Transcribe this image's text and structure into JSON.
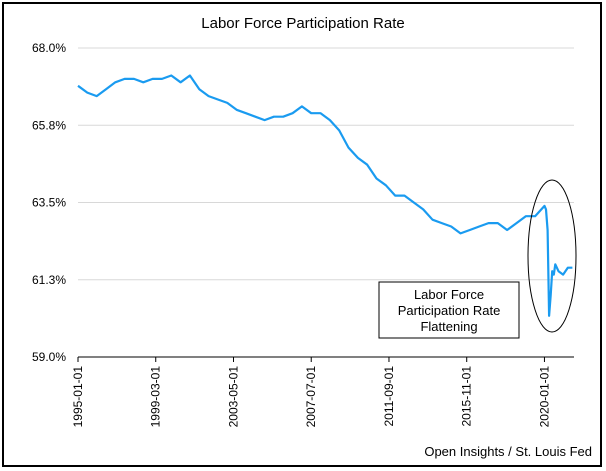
{
  "chart_data": {
    "type": "line",
    "title": "Labor Force Participation Rate",
    "xlabel": "",
    "ylabel": "",
    "ylim": [
      59.0,
      68.0
    ],
    "y_ticks": [
      "68.0%",
      "65.8%",
      "63.5%",
      "61.3%",
      "59.0%"
    ],
    "y_tick_values": [
      68.0,
      65.75,
      63.5,
      61.25,
      59.0
    ],
    "x_ticks": [
      "1995-01-01",
      "1999-03-01",
      "2003-05-01",
      "2007-07-01",
      "2011-09-01",
      "2015-11-01",
      "2020-01-01"
    ],
    "grid": "horizontal",
    "line_color": "#1a9bf0",
    "series": [
      {
        "name": "",
        "x": [
          "1995-01",
          "1995-07",
          "1996-01",
          "1996-07",
          "1997-01",
          "1997-07",
          "1998-01",
          "1998-07",
          "1999-01",
          "1999-07",
          "2000-01",
          "2000-07",
          "2001-01",
          "2001-07",
          "2002-01",
          "2002-07",
          "2003-01",
          "2003-07",
          "2004-01",
          "2004-07",
          "2005-01",
          "2005-07",
          "2006-01",
          "2006-07",
          "2007-01",
          "2007-07",
          "2008-01",
          "2008-07",
          "2009-01",
          "2009-07",
          "2010-01",
          "2010-07",
          "2011-01",
          "2011-07",
          "2012-01",
          "2012-07",
          "2013-01",
          "2013-07",
          "2014-01",
          "2014-07",
          "2015-01",
          "2015-07",
          "2016-01",
          "2016-07",
          "2017-01",
          "2017-07",
          "2018-01",
          "2018-07",
          "2019-01",
          "2019-07",
          "2020-01",
          "2020-02",
          "2020-03",
          "2020-04",
          "2020-05",
          "2020-06",
          "2020-07",
          "2020-08",
          "2020-10",
          "2021-01",
          "2021-04",
          "2021-07"
        ],
        "values": [
          66.9,
          66.7,
          66.6,
          66.8,
          67.0,
          67.1,
          67.1,
          67.0,
          67.1,
          67.1,
          67.2,
          67.0,
          67.2,
          66.8,
          66.6,
          66.5,
          66.4,
          66.2,
          66.1,
          66.0,
          65.9,
          66.0,
          66.0,
          66.1,
          66.3,
          66.1,
          66.1,
          65.9,
          65.6,
          65.1,
          64.8,
          64.6,
          64.2,
          64.0,
          63.7,
          63.7,
          63.5,
          63.3,
          63.0,
          62.9,
          62.8,
          62.6,
          62.7,
          62.8,
          62.9,
          62.9,
          62.7,
          62.9,
          63.1,
          63.1,
          63.4,
          63.3,
          62.7,
          60.2,
          60.8,
          61.5,
          61.4,
          61.7,
          61.5,
          61.4,
          61.6,
          61.6
        ]
      }
    ],
    "annotation": {
      "lines": [
        "Labor Force",
        "Participation Rate",
        "Flattening"
      ]
    },
    "source": "Open Insights / St. Louis Fed"
  }
}
